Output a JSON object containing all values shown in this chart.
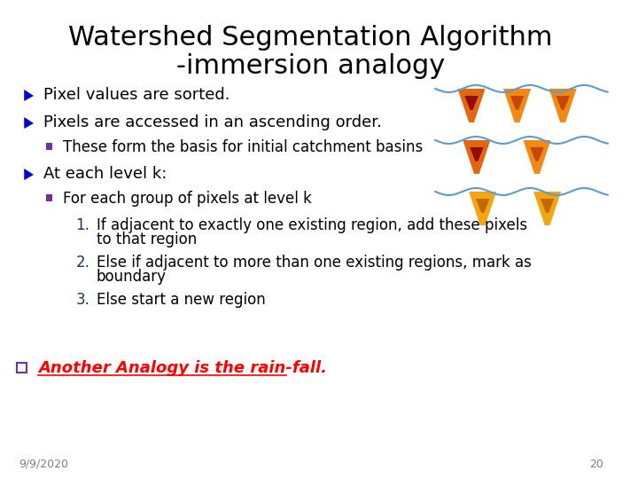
{
  "title_line1": "Watershed Segmentation Algorithm",
  "title_line2": "-immersion analogy",
  "title_fontsize": 22,
  "title_color": "#000000",
  "background_color": "#ffffff",
  "bullet_color": "#0000cc",
  "subbullet_color": "#7030a0",
  "numbered_color": "#17375e",
  "bullet1": "Pixel values are sorted.",
  "bullet2": "Pixels are accessed in an ascending order.",
  "sub1": "These form the basis for initial catchment basins",
  "bullet3": "At each level k:",
  "sub2": "For each group of pixels at level k",
  "num1a": "If adjacent to exactly one existing region, add these pixels",
  "num1b": "to that region",
  "num2a": "Else if adjacent to more than one existing regions, mark as",
  "num2b": "boundary",
  "num3": "Else start a new region",
  "analogy_label": "Another Analogy is the rain-fall.",
  "analogy_color": "#ff0000",
  "checkbox_color": "#7030a0",
  "date_text": "9/9/2020",
  "page_num": "20",
  "footer_color": "#808080",
  "text_fontsize": 13,
  "sub_fontsize": 12,
  "numbered_fontsize": 12
}
